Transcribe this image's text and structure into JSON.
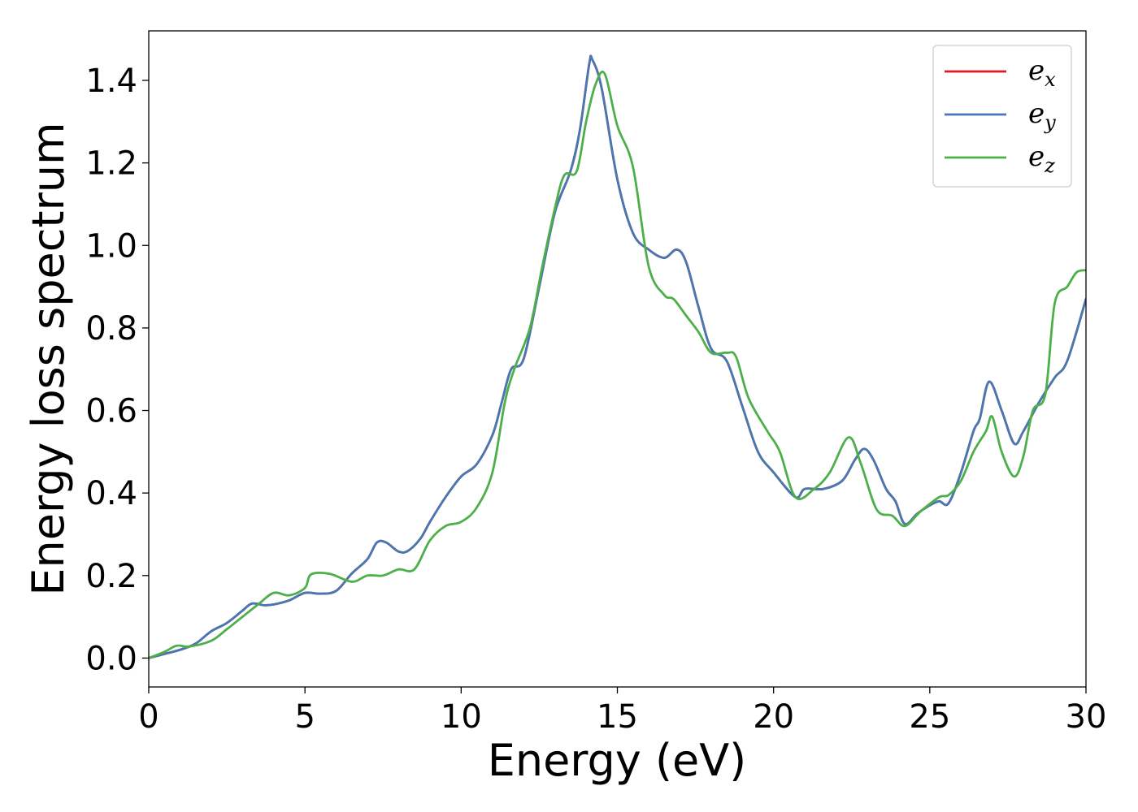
{
  "chart_data": {
    "type": "line",
    "title": "",
    "xlabel": "Energy (eV)",
    "ylabel": "Energy loss spectrum",
    "xlim": [
      0,
      30
    ],
    "ylim": [
      -0.07,
      1.52
    ],
    "xticks": [
      0,
      5,
      10,
      15,
      20,
      25,
      30
    ],
    "xtick_labels": [
      "0",
      "5",
      "10",
      "15",
      "20",
      "25",
      "30"
    ],
    "yticks": [
      0.0,
      0.2,
      0.4,
      0.6,
      0.8,
      1.0,
      1.2,
      1.4
    ],
    "ytick_labels": [
      "0.0",
      "0.2",
      "0.4",
      "0.6",
      "0.8",
      "1.0",
      "1.2",
      "1.4"
    ],
    "grid": false,
    "legend": "top-right",
    "series": [
      {
        "name": "e_x",
        "legend_base": "e",
        "legend_sub": "x",
        "color": "#e41a1c",
        "points": [
          [
            0,
            0
          ],
          [
            0.5,
            0.01
          ],
          [
            1,
            0.02
          ],
          [
            1.5,
            0.035
          ],
          [
            2,
            0.065
          ],
          [
            2.5,
            0.085
          ],
          [
            3,
            0.115
          ],
          [
            3.3,
            0.132
          ],
          [
            3.7,
            0.128
          ],
          [
            4,
            0.13
          ],
          [
            4.5,
            0.14
          ],
          [
            5,
            0.158
          ],
          [
            5.5,
            0.156
          ],
          [
            6,
            0.163
          ],
          [
            6.5,
            0.205
          ],
          [
            7,
            0.24
          ],
          [
            7.3,
            0.28
          ],
          [
            7.6,
            0.28
          ],
          [
            8,
            0.258
          ],
          [
            8.3,
            0.26
          ],
          [
            8.7,
            0.29
          ],
          [
            9,
            0.33
          ],
          [
            9.5,
            0.39
          ],
          [
            10,
            0.44
          ],
          [
            10.5,
            0.47
          ],
          [
            11,
            0.54
          ],
          [
            11.3,
            0.62
          ],
          [
            11.6,
            0.7
          ],
          [
            12,
            0.725
          ],
          [
            12.5,
            0.9
          ],
          [
            13,
            1.08
          ],
          [
            13.5,
            1.18
          ],
          [
            13.8,
            1.28
          ],
          [
            14.1,
            1.44
          ],
          [
            14.2,
            1.45
          ],
          [
            14.5,
            1.38
          ],
          [
            15,
            1.16
          ],
          [
            15.5,
            1.03
          ],
          [
            16,
            0.99
          ],
          [
            16.5,
            0.97
          ],
          [
            16.9,
            0.99
          ],
          [
            17.2,
            0.96
          ],
          [
            17.6,
            0.85
          ],
          [
            18,
            0.75
          ],
          [
            18.5,
            0.72
          ],
          [
            19,
            0.61
          ],
          [
            19.5,
            0.5
          ],
          [
            20,
            0.45
          ],
          [
            20.7,
            0.39
          ],
          [
            21,
            0.41
          ],
          [
            21.6,
            0.41
          ],
          [
            22.2,
            0.43
          ],
          [
            22.6,
            0.48
          ],
          [
            22.9,
            0.507
          ],
          [
            23.2,
            0.48
          ],
          [
            23.6,
            0.41
          ],
          [
            23.9,
            0.38
          ],
          [
            24.2,
            0.325
          ],
          [
            24.6,
            0.35
          ],
          [
            25,
            0.37
          ],
          [
            25.3,
            0.38
          ],
          [
            25.6,
            0.375
          ],
          [
            26,
            0.45
          ],
          [
            26.4,
            0.55
          ],
          [
            26.6,
            0.58
          ],
          [
            26.9,
            0.67
          ],
          [
            27.3,
            0.6
          ],
          [
            27.7,
            0.52
          ],
          [
            28,
            0.55
          ],
          [
            28.5,
            0.62
          ],
          [
            29,
            0.68
          ],
          [
            29.4,
            0.72
          ],
          [
            30,
            0.87
          ]
        ]
      },
      {
        "name": "e_y",
        "legend_base": "e",
        "legend_sub": "y",
        "color": "#4678b3",
        "points": [
          [
            0,
            0
          ],
          [
            0.5,
            0.01
          ],
          [
            1,
            0.02
          ],
          [
            1.5,
            0.035
          ],
          [
            2,
            0.065
          ],
          [
            2.5,
            0.085
          ],
          [
            3,
            0.115
          ],
          [
            3.3,
            0.132
          ],
          [
            3.7,
            0.128
          ],
          [
            4,
            0.13
          ],
          [
            4.5,
            0.14
          ],
          [
            5,
            0.158
          ],
          [
            5.5,
            0.156
          ],
          [
            6,
            0.163
          ],
          [
            6.5,
            0.205
          ],
          [
            7,
            0.24
          ],
          [
            7.3,
            0.28
          ],
          [
            7.6,
            0.28
          ],
          [
            8,
            0.258
          ],
          [
            8.3,
            0.26
          ],
          [
            8.7,
            0.29
          ],
          [
            9,
            0.33
          ],
          [
            9.5,
            0.39
          ],
          [
            10,
            0.44
          ],
          [
            10.5,
            0.47
          ],
          [
            11,
            0.54
          ],
          [
            11.3,
            0.62
          ],
          [
            11.6,
            0.7
          ],
          [
            12,
            0.725
          ],
          [
            12.5,
            0.9
          ],
          [
            13,
            1.08
          ],
          [
            13.5,
            1.18
          ],
          [
            13.8,
            1.28
          ],
          [
            14.1,
            1.44
          ],
          [
            14.2,
            1.45
          ],
          [
            14.5,
            1.38
          ],
          [
            15,
            1.16
          ],
          [
            15.5,
            1.03
          ],
          [
            16,
            0.99
          ],
          [
            16.5,
            0.97
          ],
          [
            16.9,
            0.99
          ],
          [
            17.2,
            0.96
          ],
          [
            17.6,
            0.85
          ],
          [
            18,
            0.75
          ],
          [
            18.5,
            0.72
          ],
          [
            19,
            0.61
          ],
          [
            19.5,
            0.5
          ],
          [
            20,
            0.45
          ],
          [
            20.7,
            0.39
          ],
          [
            21,
            0.41
          ],
          [
            21.6,
            0.41
          ],
          [
            22.2,
            0.43
          ],
          [
            22.6,
            0.48
          ],
          [
            22.9,
            0.507
          ],
          [
            23.2,
            0.48
          ],
          [
            23.6,
            0.41
          ],
          [
            23.9,
            0.38
          ],
          [
            24.2,
            0.325
          ],
          [
            24.6,
            0.35
          ],
          [
            25,
            0.37
          ],
          [
            25.3,
            0.38
          ],
          [
            25.6,
            0.375
          ],
          [
            26,
            0.45
          ],
          [
            26.4,
            0.55
          ],
          [
            26.6,
            0.58
          ],
          [
            26.9,
            0.67
          ],
          [
            27.3,
            0.6
          ],
          [
            27.7,
            0.52
          ],
          [
            28,
            0.55
          ],
          [
            28.5,
            0.62
          ],
          [
            29,
            0.68
          ],
          [
            29.4,
            0.72
          ],
          [
            30,
            0.87
          ]
        ]
      },
      {
        "name": "e_z",
        "legend_base": "e",
        "legend_sub": "z",
        "color": "#4daf4a",
        "points": [
          [
            0,
            0
          ],
          [
            0.5,
            0.015
          ],
          [
            0.9,
            0.03
          ],
          [
            1.3,
            0.028
          ],
          [
            2,
            0.042
          ],
          [
            2.5,
            0.07
          ],
          [
            3,
            0.1
          ],
          [
            3.5,
            0.13
          ],
          [
            4,
            0.158
          ],
          [
            4.5,
            0.152
          ],
          [
            5,
            0.17
          ],
          [
            5.2,
            0.203
          ],
          [
            5.8,
            0.204
          ],
          [
            6.5,
            0.185
          ],
          [
            7,
            0.2
          ],
          [
            7.5,
            0.2
          ],
          [
            8,
            0.215
          ],
          [
            8.5,
            0.215
          ],
          [
            9,
            0.285
          ],
          [
            9.5,
            0.32
          ],
          [
            10,
            0.33
          ],
          [
            10.5,
            0.365
          ],
          [
            11,
            0.45
          ],
          [
            11.4,
            0.62
          ],
          [
            11.7,
            0.7
          ],
          [
            12.2,
            0.8
          ],
          [
            12.6,
            0.95
          ],
          [
            13,
            1.09
          ],
          [
            13.3,
            1.17
          ],
          [
            13.7,
            1.18
          ],
          [
            14,
            1.3
          ],
          [
            14.3,
            1.39
          ],
          [
            14.6,
            1.415
          ],
          [
            15,
            1.29
          ],
          [
            15.5,
            1.19
          ],
          [
            16,
            0.95
          ],
          [
            16.5,
            0.88
          ],
          [
            16.8,
            0.87
          ],
          [
            17.2,
            0.83
          ],
          [
            17.6,
            0.79
          ],
          [
            18,
            0.74
          ],
          [
            18.5,
            0.74
          ],
          [
            18.8,
            0.73
          ],
          [
            19.2,
            0.63
          ],
          [
            19.8,
            0.55
          ],
          [
            20.2,
            0.5
          ],
          [
            20.7,
            0.39
          ],
          [
            21.3,
            0.41
          ],
          [
            21.8,
            0.45
          ],
          [
            22.4,
            0.535
          ],
          [
            22.8,
            0.47
          ],
          [
            23.3,
            0.36
          ],
          [
            23.8,
            0.345
          ],
          [
            24.2,
            0.32
          ],
          [
            24.7,
            0.355
          ],
          [
            25.3,
            0.39
          ],
          [
            25.6,
            0.395
          ],
          [
            26,
            0.43
          ],
          [
            26.4,
            0.5
          ],
          [
            26.8,
            0.55
          ],
          [
            27,
            0.585
          ],
          [
            27.3,
            0.5
          ],
          [
            27.7,
            0.44
          ],
          [
            28,
            0.49
          ],
          [
            28.3,
            0.6
          ],
          [
            28.7,
            0.64
          ],
          [
            29,
            0.86
          ],
          [
            29.4,
            0.9
          ],
          [
            29.7,
            0.935
          ],
          [
            30,
            0.94
          ]
        ]
      }
    ]
  }
}
